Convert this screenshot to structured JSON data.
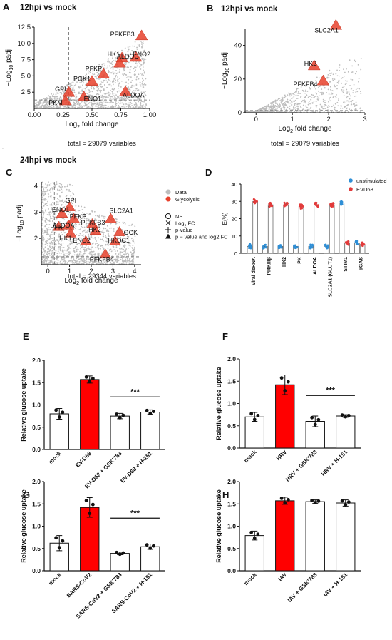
{
  "chart_data": [
    {
      "type": "scatter",
      "panel_label": "A",
      "title": "12hpi vs mock",
      "xlabel": "Log2 fold change",
      "ylabel": "−Log10 padj",
      "xlim": [
        0.0,
        1.0
      ],
      "ylim": [
        0.0,
        12.5
      ],
      "xticks": [
        "0.00",
        "0.25",
        "0.50",
        "0.75",
        "1.00"
      ],
      "yticks": [
        "2.5",
        "5.0",
        "7.5",
        "10.0",
        "12.5"
      ],
      "x_threshold": 0.3,
      "y_threshold": 1.3,
      "footer": "total = 29079 variables",
      "points": [
        {
          "label": "PFKFB3",
          "x": 0.93,
          "y": 11.2
        },
        {
          "label": "HK1",
          "x": 0.76,
          "y": 7.8
        },
        {
          "label": "ENO2",
          "x": 0.88,
          "y": 7.9
        },
        {
          "label": "ALDOC",
          "x": 0.74,
          "y": 7.0
        },
        {
          "label": "PFKP",
          "x": 0.6,
          "y": 5.3
        },
        {
          "label": "PGK1",
          "x": 0.5,
          "y": 4.2
        },
        {
          "label": "GPI",
          "x": 0.3,
          "y": 2.5
        },
        {
          "label": "ENO1",
          "x": 0.43,
          "y": 1.8
        },
        {
          "label": "ALDOA",
          "x": 0.79,
          "y": 2.6
        },
        {
          "label": "PKM",
          "x": 0.27,
          "y": 1.2
        }
      ]
    },
    {
      "type": "scatter",
      "panel_label": "B",
      "title": "12hpi vs mock",
      "xlabel": "Log2 fold change",
      "ylabel": "−Log10 padj",
      "xlim": [
        -0.3,
        3.0
      ],
      "ylim": [
        0,
        50
      ],
      "xticks": [
        "0",
        "1",
        "2",
        "3"
      ],
      "yticks": [
        "0",
        "20",
        "40"
      ],
      "x_threshold": 0.3,
      "y_threshold": 1.3,
      "footer": "total = 29079 variables",
      "points": [
        {
          "label": "SLC2A1",
          "x": 2.2,
          "y": 52
        },
        {
          "label": "HK2",
          "x": 1.6,
          "y": 28
        },
        {
          "label": "PFKFB4",
          "x": 1.85,
          "y": 19
        }
      ]
    },
    {
      "type": "scatter",
      "panel_label": "C",
      "title": "24hpi vs mock",
      "xlabel": "Log2 fold change",
      "ylabel": "−Log10 padj",
      "xlim": [
        -0.3,
        4.3
      ],
      "ylim": [
        1.0,
        4.15
      ],
      "xticks": [
        "0",
        "1",
        "2",
        "3",
        "4"
      ],
      "yticks": [
        "2",
        "3",
        "4"
      ],
      "x_threshold": 0.3,
      "y_threshold": 1.3,
      "footer": "total = 29344 variables",
      "legend": {
        "groups": [
          {
            "items": [
              {
                "label": "Data",
                "color": "#bdbdbd"
              },
              {
                "label": "Glycolysis",
                "color": "#e8412c"
              }
            ]
          },
          {
            "items": [
              {
                "label": "NS",
                "shape": "circle"
              },
              {
                "label": "Log2 FC",
                "shape": "cross"
              },
              {
                "label": "p-value",
                "shape": "plus"
              },
              {
                "label": "p − value and log2 FC",
                "shape": "triangle"
              }
            ]
          }
        ]
      },
      "points": [
        {
          "label": "GPI",
          "x": 1.0,
          "y": 3.2
        },
        {
          "label": "ENO1",
          "x": 0.65,
          "y": 2.95
        },
        {
          "label": "PFKP",
          "x": 1.2,
          "y": 2.75
        },
        {
          "label": "PFK",
          "x": 0.5,
          "y": 2.45
        },
        {
          "label": "ALDOA",
          "x": 0.95,
          "y": 2.5
        },
        {
          "label": "HK1",
          "x": 1.05,
          "y": 2.2
        },
        {
          "label": "PFKFB3",
          "x": 2.05,
          "y": 2.55
        },
        {
          "label": "SLC2A1",
          "x": 2.9,
          "y": 2.75
        },
        {
          "label": "HK2",
          "x": 2.2,
          "y": 2.3
        },
        {
          "label": "GCK",
          "x": 3.3,
          "y": 2.25
        },
        {
          "label": "ENO2",
          "x": 1.75,
          "y": 1.9
        },
        {
          "label": "HKDC1",
          "x": 3.1,
          "y": 1.9
        },
        {
          "label": "PFKFB4",
          "x": 2.65,
          "y": 1.4
        }
      ]
    },
    {
      "type": "bar",
      "panel_label": "D",
      "ylabel": "E(%)",
      "ylim": [
        0,
        40
      ],
      "yticks": [
        "0",
        "10",
        "20",
        "30",
        "40"
      ],
      "categories": [
        "viral dsRNA",
        "PI4KIIIβ",
        "HK2",
        "PK",
        "ALDOA",
        "SLC2A1 (GLUT1)",
        "STIM1",
        "cGAS"
      ],
      "legend": [
        "unstimulated",
        "EVD68"
      ],
      "colors": {
        "unstimulated": "#2f8fd6",
        "EVD68": "#e23b3b"
      },
      "series": [
        {
          "name": "unstimulated",
          "values": [
            4,
            4,
            4,
            4,
            4,
            4,
            29,
            6
          ]
        },
        {
          "name": "EVD68",
          "values": [
            30,
            28,
            28,
            27,
            28,
            28,
            6,
            5
          ]
        }
      ]
    },
    {
      "type": "bar",
      "panel_label": "E",
      "ylabel": "Relative glucose uptake",
      "ylim": [
        0,
        2.0
      ],
      "yticks": [
        "0.0",
        "0.5",
        "1.0",
        "1.5",
        "2.0"
      ],
      "categories": [
        "mock",
        "EV-D68",
        "EV-D68 + GSK'783",
        "EV-D68 + H-151"
      ],
      "values": [
        0.8,
        1.57,
        0.75,
        0.84
      ],
      "errors": [
        0.12,
        0.08,
        0.06,
        0.05
      ],
      "highlight": "EV-D68",
      "significance": "***"
    },
    {
      "type": "bar",
      "panel_label": "F",
      "ylabel": "Relative glucose uptake",
      "ylim": [
        0,
        2.0
      ],
      "yticks": [
        "0.0",
        "0.5",
        "1.0",
        "1.5",
        "2.0"
      ],
      "categories": [
        "mock",
        "HRV",
        "HRV + GSK'783",
        "HRV + H-151"
      ],
      "values": [
        0.7,
        1.42,
        0.6,
        0.72
      ],
      "errors": [
        0.1,
        0.22,
        0.12,
        0.03
      ],
      "highlight": "HRV",
      "significance": "***"
    },
    {
      "type": "bar",
      "panel_label": "G",
      "ylabel": "Relative glucose uptake",
      "ylim": [
        0,
        2.0
      ],
      "yticks": [
        "0.0",
        "0.5",
        "1.0",
        "1.5",
        "2.0"
      ],
      "categories": [
        "mock",
        "SARS-CoV2",
        "SARS-CoV2 + GSK'783",
        "SARS-CoV2 + H-151"
      ],
      "values": [
        0.62,
        1.42,
        0.39,
        0.54
      ],
      "errors": [
        0.17,
        0.22,
        0.03,
        0.06
      ],
      "highlight": "SARS-CoV2",
      "significance": "***"
    },
    {
      "type": "bar",
      "panel_label": "H",
      "ylabel": "Relative glucose uptake",
      "ylim": [
        0,
        2.0
      ],
      "yticks": [
        "0.0",
        "0.5",
        "1.0",
        "1.5",
        "2.0"
      ],
      "categories": [
        "mock",
        "IAV",
        "IAV + GSK'783",
        "IAV + H-151"
      ],
      "values": [
        0.79,
        1.57,
        1.55,
        1.52
      ],
      "errors": [
        0.1,
        0.08,
        0.04,
        0.07
      ],
      "highlight": "IAV",
      "significance": ""
    }
  ]
}
